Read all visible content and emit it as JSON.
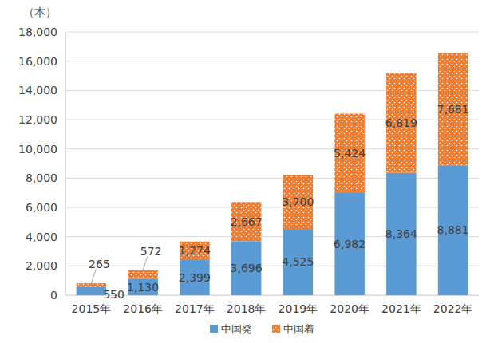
{
  "chart_data": {
    "type": "bar",
    "stacked": true,
    "ylabel": "（本）",
    "categories": [
      "2015年",
      "2016年",
      "2017年",
      "2018年",
      "2019年",
      "2020年",
      "2021年",
      "2022年"
    ],
    "series": [
      {
        "name": "中国発",
        "color": "#5b9bd5",
        "values": [
          550,
          1130,
          2399,
          3696,
          4525,
          6982,
          8364,
          8881
        ],
        "value_labels": [
          "550",
          "1,130",
          "2,399",
          "3,696",
          "4,525",
          "6,982",
          "8,364",
          "8,881"
        ]
      },
      {
        "name": "中国着",
        "color": "#ed7d31",
        "values": [
          265,
          572,
          1274,
          2667,
          3700,
          5424,
          6819,
          7681
        ],
        "value_labels": [
          "265",
          "572",
          "1,274",
          "2,667",
          "3,700",
          "5,424",
          "6,819",
          "7,681"
        ]
      }
    ],
    "ylim": [
      0,
      18000
    ],
    "yticks": [
      0,
      {
        "value": 2000,
        "label": "2,000"
      },
      {
        "value": 4000,
        "label": "4,000"
      },
      {
        "value": 6000,
        "label": "6,000"
      },
      {
        "value": 8000,
        "label": "8,000"
      },
      {
        "value": 10000,
        "label": "10,000"
      },
      {
        "value": 12000,
        "label": "12,000"
      },
      {
        "value": 14000,
        "label": "14,000"
      },
      {
        "value": 16000,
        "label": "16,000"
      },
      {
        "value": 18000,
        "label": "18,000"
      }
    ],
    "grid": true,
    "data_labels": true,
    "legend": "bottom"
  }
}
